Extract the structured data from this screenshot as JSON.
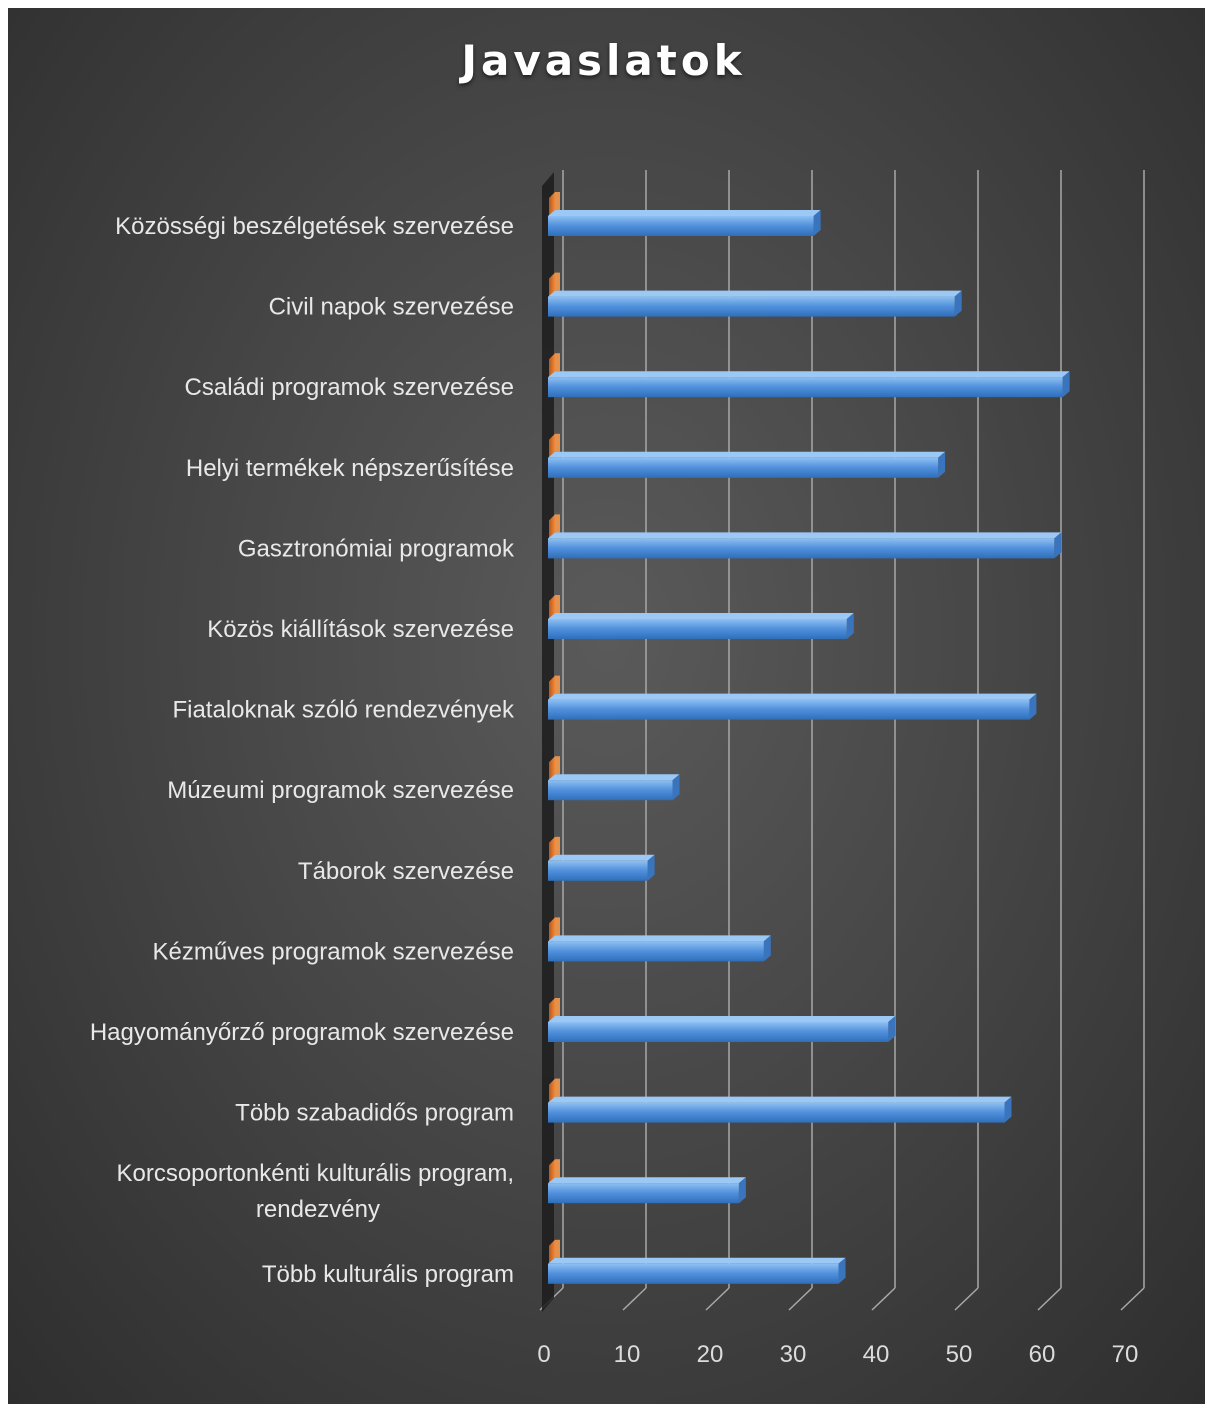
{
  "chart_data": {
    "type": "bar",
    "orientation": "horizontal",
    "title": "Javaslatok",
    "categories": [
      "Közösségi beszélgetések szervezése",
      "Civil napok szervezése",
      "Családi programok szervezése",
      "Helyi termékek népszerűsítése",
      "Gasztronómiai programok",
      "Közös kiállítások szervezése",
      "Fiataloknak szóló rendezvények",
      "Múzeumi programok szervezése",
      "Táborok szervezése",
      "Kézműves programok szervezése",
      "Hagyományőrző programok szervezése",
      "Több szabadidős program",
      "Korcsoportonkénti kulturális program, rendezvény",
      "Több kulturális program"
    ],
    "category_lines": [
      [
        "Közösségi beszélgetések szervezése"
      ],
      [
        "Civil napok szervezése"
      ],
      [
        "Családi programok szervezése"
      ],
      [
        "Helyi termékek népszerűsítése"
      ],
      [
        "Gasztronómiai programok"
      ],
      [
        "Közös kiállítások szervezése"
      ],
      [
        "Fiataloknak szóló rendezvények"
      ],
      [
        "Múzeumi programok szervezése"
      ],
      [
        "Táborok szervezése"
      ],
      [
        "Kézműves programok szervezése"
      ],
      [
        "Hagyományőrző programok szervezése"
      ],
      [
        "Több szabadidős program"
      ],
      [
        "Korcsoportonkénti kulturális program,",
        "rendezvény"
      ],
      [
        "Több kulturális program"
      ]
    ],
    "series": [
      {
        "values": [
          32,
          49,
          62,
          47,
          61,
          36,
          58,
          15,
          12,
          26,
          41,
          55,
          23,
          35
        ],
        "color": "#4f8fdb"
      },
      {
        "values": [
          0,
          0,
          0,
          0,
          0,
          0,
          0,
          0,
          0,
          0,
          0,
          0,
          0,
          0
        ],
        "color": "#e8762d"
      }
    ],
    "xlim": [
      0,
      70
    ],
    "xticks": [
      0,
      10,
      20,
      30,
      40,
      50,
      60,
      70
    ],
    "grid": true,
    "style": "3d-clustered-bar"
  }
}
